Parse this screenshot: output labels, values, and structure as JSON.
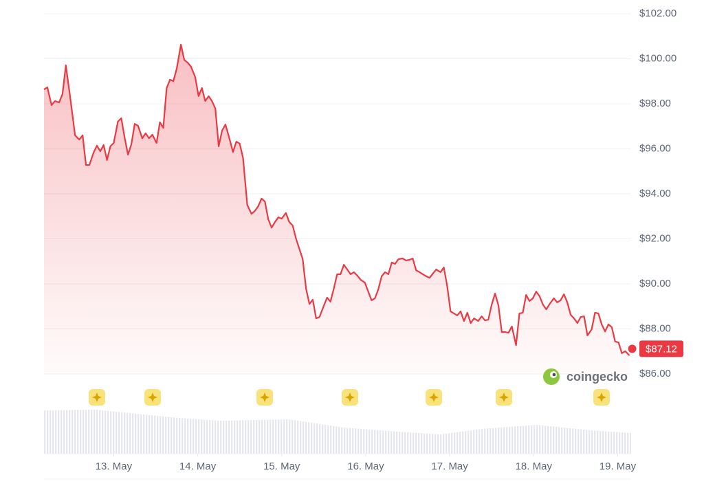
{
  "chart_data": {
    "type": "line",
    "color": "#ea3943",
    "grid": true,
    "watermark": "coingecko",
    "current_price": {
      "value": 87.12,
      "label": "$87.12"
    },
    "xlim": [
      12.17,
      19.16
    ],
    "ylim": [
      86,
      102
    ],
    "xticks": [
      {
        "value": 13,
        "label": "13. May"
      },
      {
        "value": 14,
        "label": "14. May"
      },
      {
        "value": 15,
        "label": "15. May"
      },
      {
        "value": 16,
        "label": "16. May"
      },
      {
        "value": 17,
        "label": "17. May"
      },
      {
        "value": 18,
        "label": "18. May"
      },
      {
        "value": 19,
        "label": "19. May"
      }
    ],
    "yticks": [
      {
        "value": 86,
        "label": "$86.00"
      },
      {
        "value": 88,
        "label": "$88.00"
      },
      {
        "value": 90,
        "label": "$90.00"
      },
      {
        "value": 92,
        "label": "$92.00"
      },
      {
        "value": 94,
        "label": "$94.00"
      },
      {
        "value": 96,
        "label": "$96.00"
      },
      {
        "value": 98,
        "label": "$98.00"
      },
      {
        "value": 100,
        "label": "$100.00"
      },
      {
        "value": 102,
        "label": "$102.00"
      }
    ],
    "x": [
      12.17,
      12.21,
      12.26,
      12.3,
      12.35,
      12.39,
      12.43,
      12.48,
      12.54,
      12.59,
      12.63,
      12.67,
      12.71,
      12.76,
      12.8,
      12.84,
      12.88,
      12.92,
      12.96,
      13.0,
      13.05,
      13.09,
      13.13,
      13.17,
      13.21,
      13.25,
      13.29,
      13.34,
      13.38,
      13.42,
      13.46,
      13.51,
      13.55,
      13.59,
      13.63,
      13.67,
      13.71,
      13.75,
      13.8,
      13.84,
      13.88,
      13.92,
      13.97,
      14.01,
      14.05,
      14.09,
      14.13,
      14.17,
      14.21,
      14.25,
      14.29,
      14.33,
      14.37,
      14.42,
      14.46,
      14.5,
      14.54,
      14.59,
      14.64,
      14.68,
      14.72,
      14.76,
      14.8,
      14.84,
      14.88,
      14.92,
      14.96,
      15.0,
      15.05,
      15.09,
      15.13,
      15.17,
      15.21,
      15.25,
      15.29,
      15.33,
      15.37,
      15.41,
      15.45,
      15.5,
      15.54,
      15.58,
      15.62,
      15.66,
      15.7,
      15.74,
      15.78,
      15.82,
      15.86,
      15.9,
      15.94,
      15.99,
      16.03,
      16.07,
      16.11,
      16.15,
      16.19,
      16.23,
      16.27,
      16.31,
      16.35,
      16.39,
      16.44,
      16.48,
      16.52,
      16.56,
      16.6,
      16.64,
      16.68,
      16.72,
      16.76,
      16.8,
      16.84,
      16.89,
      16.93,
      16.97,
      17.01,
      17.05,
      17.09,
      17.13,
      17.17,
      17.21,
      17.25,
      17.29,
      17.34,
      17.38,
      17.42,
      17.46,
      17.5,
      17.54,
      17.58,
      17.62,
      17.66,
      17.7,
      17.74,
      17.79,
      17.83,
      17.87,
      17.91,
      17.95,
      17.99,
      18.03,
      18.07,
      18.11,
      18.15,
      18.19,
      18.24,
      18.28,
      18.32,
      18.36,
      18.4,
      18.44,
      18.48,
      18.52,
      18.56,
      18.6,
      18.64,
      18.69,
      18.73,
      18.77,
      18.81,
      18.85,
      18.89,
      18.93,
      18.97,
      19.01,
      19.05,
      19.09,
      19.14
    ],
    "values": [
      98.64,
      98.73,
      97.94,
      98.12,
      98.06,
      98.43,
      99.71,
      98.34,
      96.6,
      96.41,
      96.6,
      95.28,
      95.28,
      95.83,
      96.14,
      95.89,
      96.17,
      95.5,
      96.11,
      96.26,
      97.21,
      97.36,
      96.5,
      95.74,
      96.2,
      97.11,
      97.02,
      96.47,
      96.69,
      96.47,
      96.63,
      96.26,
      97.18,
      96.93,
      98.7,
      99.07,
      99.01,
      99.56,
      100.63,
      99.95,
      99.83,
      99.65,
      99.19,
      98.34,
      98.7,
      98.12,
      98.34,
      98.12,
      97.79,
      96.11,
      96.81,
      97.08,
      96.56,
      95.86,
      96.32,
      96.23,
      95.59,
      93.51,
      93.11,
      93.24,
      93.45,
      93.79,
      93.66,
      92.87,
      92.5,
      92.75,
      92.96,
      92.9,
      93.15,
      92.75,
      92.6,
      92.02,
      91.56,
      91.1,
      89.79,
      89.11,
      89.3,
      88.47,
      88.53,
      89.02,
      89.39,
      89.21,
      89.79,
      90.43,
      90.43,
      90.85,
      90.64,
      90.43,
      90.52,
      90.37,
      90.18,
      90.06,
      89.66,
      89.27,
      89.36,
      89.76,
      90.34,
      90.52,
      90.43,
      90.95,
      90.89,
      91.1,
      91.13,
      91.04,
      91.07,
      91.13,
      90.61,
      90.52,
      90.43,
      90.34,
      90.27,
      90.46,
      90.64,
      90.52,
      90.73,
      89.91,
      88.78,
      88.69,
      88.6,
      88.78,
      88.35,
      88.72,
      88.26,
      88.47,
      88.35,
      88.56,
      88.38,
      88.41,
      89.08,
      89.57,
      89.05,
      87.86,
      87.86,
      87.83,
      88.11,
      87.28,
      88.69,
      88.72,
      89.51,
      89.24,
      89.36,
      89.66,
      89.45,
      89.08,
      88.87,
      89.11,
      89.36,
      89.18,
      89.27,
      89.54,
      89.18,
      88.63,
      88.47,
      88.26,
      88.53,
      88.56,
      87.71,
      87.98,
      88.72,
      88.69,
      88.2,
      87.89,
      88.2,
      88.08,
      87.44,
      87.4,
      86.92,
      87.01,
      86.82
    ]
  }
}
